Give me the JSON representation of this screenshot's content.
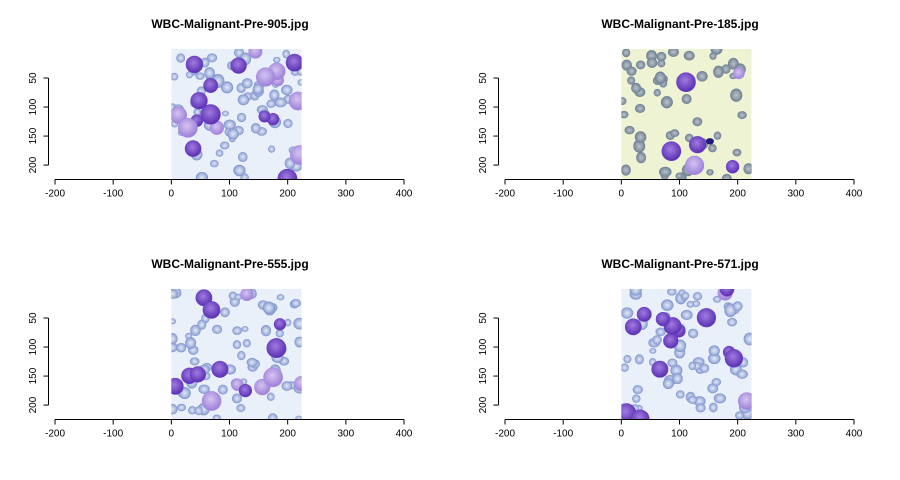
{
  "colors": {
    "background": "#ffffff",
    "axis": "#000000",
    "cell_purple": "#6b3fc4",
    "cell_purple_light": "#a88ae0",
    "rbc_blue": "#7f93c9",
    "smear_bg_light": "#e9f0fa",
    "smear_bg_yellow": "#eef3d4",
    "stain_dark": "#1f1a7a"
  },
  "chart_data": [
    {
      "type": "image",
      "title": "WBC-Malignant-Pre-905.jpg",
      "xlim": [
        -200,
        400
      ],
      "ylim": [
        224,
        0
      ],
      "x_ticks": [
        -200,
        -100,
        0,
        100,
        200,
        300,
        400
      ],
      "y_ticks": [
        50,
        100,
        150,
        200
      ],
      "image_extent": {
        "x": [
          0,
          224
        ],
        "y": [
          0,
          224
        ]
      },
      "style": "dense-purple-blasts"
    },
    {
      "type": "image",
      "title": "WBC-Malignant-Pre-185.jpg",
      "xlim": [
        -200,
        400
      ],
      "ylim": [
        224,
        0
      ],
      "x_ticks": [
        -200,
        -100,
        0,
        100,
        200,
        300,
        400
      ],
      "y_ticks": [
        50,
        100,
        150,
        200
      ],
      "image_extent": {
        "x": [
          0,
          224
        ],
        "y": [
          0,
          224
        ]
      },
      "style": "sparse-yellow-background"
    },
    {
      "type": "image",
      "title": "WBC-Malignant-Pre-555.jpg",
      "xlim": [
        -200,
        400
      ],
      "ylim": [
        224,
        0
      ],
      "x_ticks": [
        -200,
        -100,
        0,
        100,
        200,
        300,
        400
      ],
      "y_ticks": [
        50,
        100,
        150,
        200
      ],
      "image_extent": {
        "x": [
          0,
          224
        ],
        "y": [
          0,
          224
        ]
      },
      "style": "mixed-purple-blue"
    },
    {
      "type": "image",
      "title": "WBC-Malignant-Pre-571.jpg",
      "xlim": [
        -200,
        400
      ],
      "ylim": [
        224,
        0
      ],
      "x_ticks": [
        -200,
        -100,
        0,
        100,
        200,
        300,
        400
      ],
      "y_ticks": [
        50,
        100,
        150,
        200
      ],
      "image_extent": {
        "x": [
          0,
          224
        ],
        "y": [
          0,
          224
        ]
      },
      "style": "mixed-purple-blue"
    }
  ]
}
